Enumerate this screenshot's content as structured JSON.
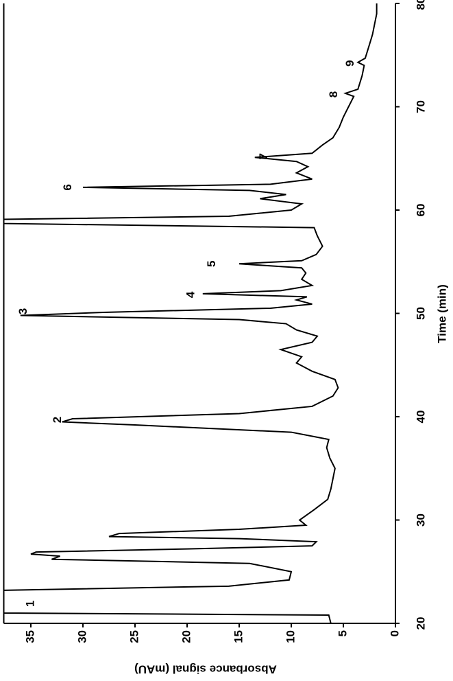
{
  "chart_data": {
    "type": "line",
    "xlabel": "Time (min)",
    "ylabel": "Absorbance signal (mAU)",
    "xlim": [
      20,
      80
    ],
    "xticks": [
      20,
      30,
      40,
      50,
      60,
      70,
      80
    ],
    "ylim": [
      0,
      37.6
    ],
    "yticks": [
      0,
      5,
      10,
      15,
      20,
      25,
      30,
      35
    ],
    "x": [
      20,
      20.8,
      21,
      23.2,
      23.6,
      24.2,
      25,
      25.8,
      26.2,
      26.5,
      26.7,
      26.9,
      27.2,
      27.5,
      27.9,
      28.2,
      28.4,
      28.7,
      29.1,
      29.5,
      30,
      31,
      32,
      33,
      34,
      35,
      36,
      37,
      37.8,
      38.5,
      39.2,
      39.5,
      39.8,
      40.3,
      41,
      42,
      42.8,
      43.6,
      44.4,
      45.2,
      45.8,
      46.5,
      47.2,
      47.8,
      48.4,
      49,
      49.4,
      49.8,
      50.1,
      50.5,
      50.9,
      51.3,
      51.6,
      51.9,
      52.2,
      52.7,
      53.3,
      53.9,
      54.4,
      54.8,
      55.1,
      55.7,
      56.5,
      57.5,
      58.3,
      58.7,
      59.1,
      59.4,
      60,
      60.6,
      61.1,
      61.5,
      61.9,
      62.2,
      62.5,
      63,
      63.6,
      64.2,
      64.7,
      65.1,
      65.5,
      66.3,
      67,
      68,
      69,
      70,
      71,
      71.3,
      71.7,
      73,
      74,
      74.3,
      74.7,
      76,
      77,
      78,
      79,
      80
    ],
    "series": [
      {
        "color": "#000000",
        "values": [
          6.2,
          6.4,
          37.6,
          37.6,
          16,
          10.2,
          10,
          14,
          33,
          32.2,
          35,
          34.5,
          20,
          8,
          7.6,
          15,
          27.5,
          26.5,
          15,
          8.6,
          9.2,
          7.8,
          6.5,
          6.2,
          6,
          5.8,
          6.3,
          6.6,
          6.4,
          10,
          25,
          32,
          31,
          15,
          8,
          6,
          5.5,
          5.8,
          8,
          9.5,
          9,
          11,
          8,
          7.5,
          9.5,
          10.5,
          15,
          36,
          28,
          12,
          8,
          9.5,
          8.5,
          18.5,
          11,
          8,
          9,
          8.6,
          9,
          15,
          9,
          7.6,
          7,
          7.5,
          7.8,
          37.6,
          37.6,
          16,
          10,
          9,
          13,
          10.5,
          14,
          30,
          12,
          8,
          9.5,
          8.4,
          9.5,
          13.5,
          8,
          7,
          6,
          5.4,
          5,
          4.5,
          4,
          4.8,
          3.6,
          3.2,
          3,
          3.6,
          2.9,
          2.5,
          2.2,
          2,
          1.8,
          1.8
        ]
      }
    ],
    "annotations": [
      {
        "text": "1",
        "x": 21.9,
        "y": 35
      },
      {
        "text": "2",
        "x": 39.7,
        "y": 32.4
      },
      {
        "text": "3",
        "x": 50.2,
        "y": 35.7
      },
      {
        "text": "4",
        "x": 51.8,
        "y": 19.6
      },
      {
        "text": "5",
        "x": 54.8,
        "y": 17.6
      },
      {
        "text": "6",
        "x": 62.2,
        "y": 31.4
      },
      {
        "text": "7",
        "x": 65.2,
        "y": 12.6
      },
      {
        "text": "8",
        "x": 71.2,
        "y": 5.9
      },
      {
        "text": "9",
        "x": 74.2,
        "y": 4.3
      }
    ]
  }
}
